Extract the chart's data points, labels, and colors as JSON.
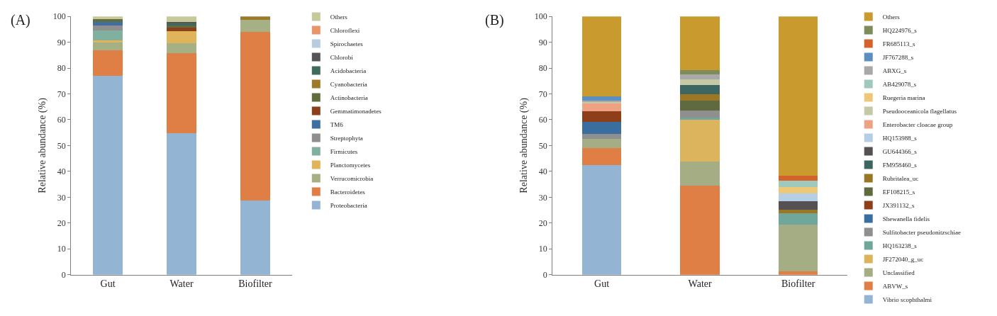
{
  "chart_data": [
    {
      "type": "bar",
      "title": "(A)",
      "ylabel": "Relative abundance (%)",
      "categories": [
        "Gut",
        "Water",
        "Biofilter"
      ],
      "stacked": true,
      "ylim": [
        0,
        100
      ],
      "yticks": [
        0,
        10,
        20,
        30,
        40,
        50,
        60,
        70,
        80,
        90,
        100
      ],
      "legend": "right",
      "series": [
        {
          "name": "Proteobacteria",
          "color": "#93b4d3",
          "values": [
            77,
            54.8,
            28.8
          ]
        },
        {
          "name": "Bacteroidetes",
          "color": "#e07f45",
          "values": [
            10,
            31,
            65.2
          ]
        },
        {
          "name": "Verrucomicrobia",
          "color": "#a5b085",
          "values": [
            3,
            3.8,
            4.6
          ]
        },
        {
          "name": "Planctomycetes",
          "color": "#e0b45a",
          "values": [
            0.6,
            4.6,
            0
          ]
        },
        {
          "name": "Firmicutes",
          "color": "#7fb0a0",
          "values": [
            4,
            0,
            0
          ]
        },
        {
          "name": "Streptophyta",
          "color": "#8f8f8f",
          "values": [
            2,
            0,
            0
          ]
        },
        {
          "name": "TM6",
          "color": "#3e6fa0",
          "values": [
            1.2,
            0,
            0
          ]
        },
        {
          "name": "Gemmatimonadetes",
          "color": "#8b3f1a",
          "values": [
            0,
            1.5,
            0
          ]
        },
        {
          "name": "Actinobacteria",
          "color": "#5f6e3c",
          "values": [
            1.2,
            0.8,
            0
          ]
        },
        {
          "name": "Cyanobacteria",
          "color": "#9c7a2a",
          "values": [
            0,
            0,
            1.4
          ]
        },
        {
          "name": "Acidobacteria",
          "color": "#3f6b5e",
          "values": [
            0,
            0.8,
            0
          ]
        },
        {
          "name": "Chlorobi",
          "color": "#555555",
          "values": [
            0,
            0.6,
            0
          ]
        },
        {
          "name": "Spirochaetes",
          "color": "#b8cce0",
          "values": [
            0,
            0,
            0
          ]
        },
        {
          "name": "Chloroflexi",
          "color": "#e8956a",
          "values": [
            0,
            0,
            0
          ]
        },
        {
          "name": "Others",
          "color": "#c8c99a",
          "values": [
            1,
            2.1,
            0
          ]
        }
      ]
    },
    {
      "type": "bar",
      "title": "(B)",
      "ylabel": "Relative abundance (%)",
      "categories": [
        "Gut",
        "Water",
        "Biofilter"
      ],
      "stacked": true,
      "ylim": [
        0,
        100
      ],
      "yticks": [
        0,
        10,
        20,
        30,
        40,
        50,
        60,
        70,
        80,
        90,
        100
      ],
      "legend": "right",
      "series": [
        {
          "name": "Vibrio scophthalmi",
          "color": "#93b4d3",
          "values": [
            42.4,
            0,
            0
          ]
        },
        {
          "name": "ABVW_s",
          "color": "#df7f45",
          "values": [
            6.5,
            34.6,
            1.3
          ]
        },
        {
          "name": "Unclassified",
          "color": "#a4ad84",
          "values": [
            3.8,
            9.1,
            18.1
          ]
        },
        {
          "name": "JF272040_g_uc",
          "color": "#dcb45e",
          "values": [
            0,
            16.4,
            0
          ]
        },
        {
          "name": "HQ163238_s",
          "color": "#6fa79b",
          "values": [
            0,
            0.7,
            4.4
          ]
        },
        {
          "name": "Sulfitobacter pseudonitzschiae",
          "color": "#8f8f8f",
          "values": [
            1.8,
            2.8,
            0
          ]
        },
        {
          "name": "Shewanella fidelis",
          "color": "#3a6e9e",
          "values": [
            4.8,
            0,
            0
          ]
        },
        {
          "name": "JX391132_s",
          "color": "#8e3f1a",
          "values": [
            4.1,
            0,
            0
          ]
        },
        {
          "name": "EF108215_s",
          "color": "#5f6a3e",
          "values": [
            0,
            3.9,
            0
          ]
        },
        {
          "name": "Rubritalea_uc",
          "color": "#9a7625",
          "values": [
            0,
            2.5,
            1.4
          ]
        },
        {
          "name": "FM958460_s",
          "color": "#3e6660",
          "values": [
            0,
            3.3,
            0
          ]
        },
        {
          "name": "GU644366_s",
          "color": "#555052",
          "values": [
            0,
            0,
            3.2
          ]
        },
        {
          "name": "HQ153988_s",
          "color": "#b6cde6",
          "values": [
            0,
            0,
            3.1
          ]
        },
        {
          "name": "Enterobacter cloacae group",
          "color": "#eea281",
          "values": [
            2.8,
            0,
            0
          ]
        },
        {
          "name": "Pseudooceanicola flagellatus",
          "color": "#c6c9a6",
          "values": [
            0.6,
            2.2,
            0
          ]
        },
        {
          "name": "Ruegeria marina",
          "color": "#ecc878",
          "values": [
            0,
            0,
            2.5
          ]
        },
        {
          "name": "AB429078_s",
          "color": "#9ec9bc",
          "values": [
            0,
            0,
            2.3
          ]
        },
        {
          "name": "ABXG_s",
          "color": "#a9a9a9",
          "values": [
            0.6,
            2.0,
            0
          ]
        },
        {
          "name": "JF767288_s",
          "color": "#5a8fc0",
          "values": [
            1.7,
            0,
            0
          ]
        },
        {
          "name": "FR685113_s",
          "color": "#d4622a",
          "values": [
            0,
            0,
            2.0
          ]
        },
        {
          "name": "HQ224976_s",
          "color": "#7d8c5a",
          "values": [
            0,
            1.7,
            0
          ]
        },
        {
          "name": "Others",
          "color": "#c99a2e",
          "values": [
            30.9,
            20.8,
            61.7
          ]
        }
      ]
    }
  ]
}
